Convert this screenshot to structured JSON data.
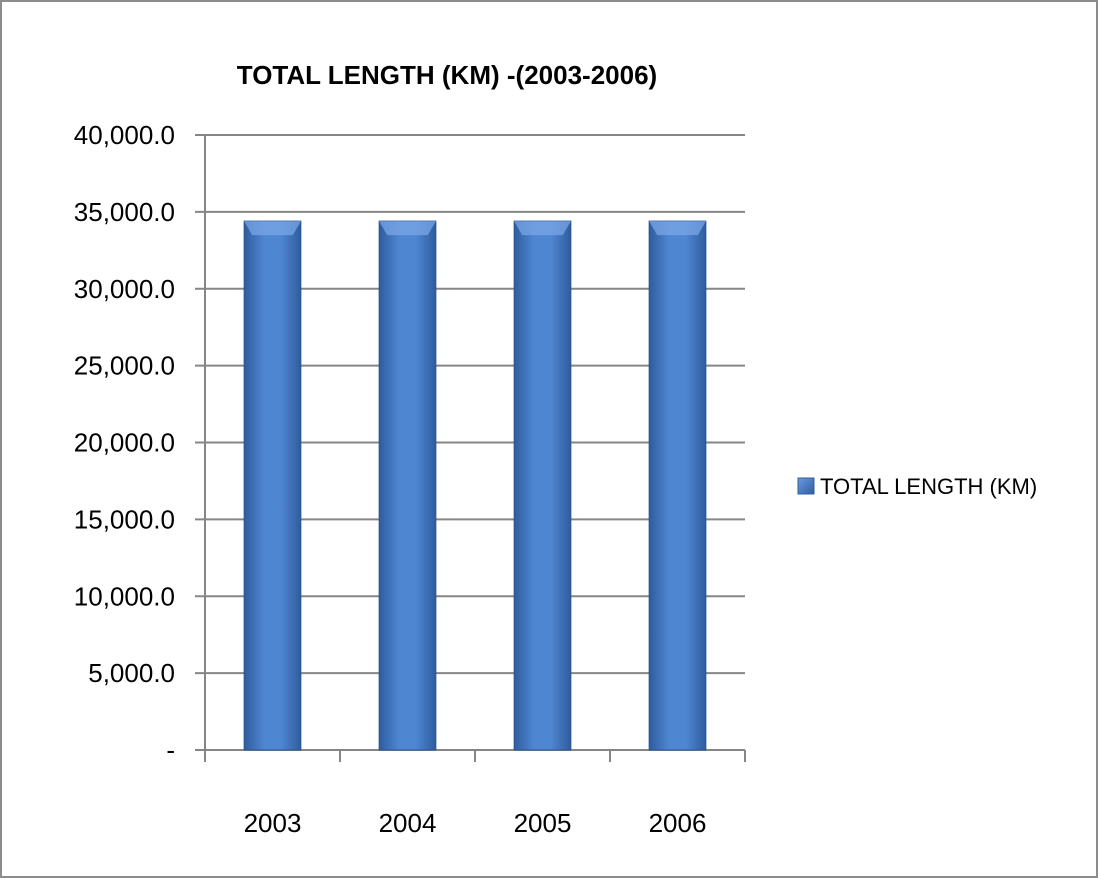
{
  "chart_data": {
    "type": "bar",
    "title": "TOTAL LENGTH (KM) -(2003-2006)",
    "categories": [
      "2003",
      "2004",
      "2005",
      "2006"
    ],
    "series": [
      {
        "name": "TOTAL LENGTH (KM)",
        "values": [
          34400,
          34400,
          34400,
          34400
        ],
        "color": "#4a7ec8"
      }
    ],
    "xlabel": "",
    "ylabel": "",
    "ylim": [
      0,
      40000
    ],
    "yticks": [
      0,
      5000,
      10000,
      15000,
      20000,
      25000,
      30000,
      35000,
      40000
    ],
    "ytick_labels": [
      "-",
      "5,000.0",
      "10,000.0",
      "15,000.0",
      "20,000.0",
      "25,000.0",
      "30,000.0",
      "35,000.0",
      "40,000.0"
    ],
    "grid": "horizontal",
    "legend": "right"
  }
}
